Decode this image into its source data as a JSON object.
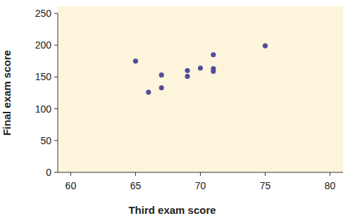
{
  "chart_data": {
    "type": "scatter",
    "x_label": "Third exam score",
    "y_label": "Final exam score",
    "x": [
      65,
      66,
      67,
      67,
      69,
      69,
      70,
      71,
      71,
      71,
      75
    ],
    "values": [
      175,
      126,
      153,
      133,
      160,
      151,
      164,
      185,
      163,
      159,
      199
    ],
    "color": "#514d9a",
    "marker": "circle",
    "xlim": [
      59,
      81
    ],
    "xticks": [
      60,
      65,
      70,
      75,
      80
    ],
    "ylim": [
      0,
      250
    ],
    "yticks": [
      0,
      50,
      100,
      150,
      200,
      250
    ],
    "grid": false
  }
}
